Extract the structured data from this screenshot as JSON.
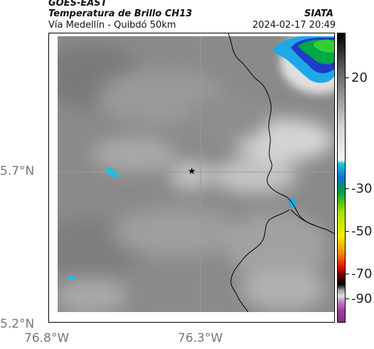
{
  "header": {
    "satellite": "GOES-EAST",
    "product": "Temperatura de Brillo CH13",
    "agency": "SIATA",
    "region": "Vía Medellín - Quibdó 50km",
    "datetime": "2024-02-17 20:49"
  },
  "map": {
    "latitude_labels": [
      "5.7°N",
      "5.2°N"
    ],
    "longitude_labels": [
      "76.8°W",
      "76.3°W"
    ],
    "marker": "star-marker",
    "colors": {
      "cold_cloud_blue": "#1fa8e6",
      "cold_cloud_green": "#00c000",
      "border_line": "#000000"
    }
  },
  "colorbar": {
    "labels": [
      "20",
      "-30",
      "-50",
      "-70",
      "-90"
    ]
  }
}
